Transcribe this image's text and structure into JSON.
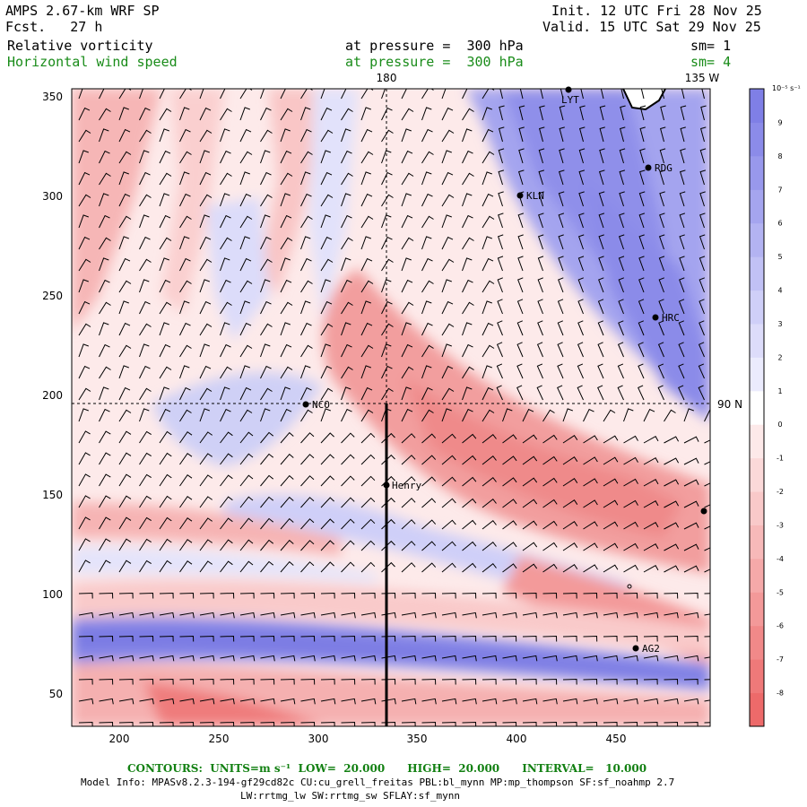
{
  "header": {
    "model_title": "AMPS 2.67-km WRF SP",
    "forecast": "Fcst.   27 h",
    "init": "Init. 12 UTC Fri 28 Nov 25",
    "valid": "Valid. 15 UTC Sat 29 Nov 25",
    "field1_name": "Relative vorticity",
    "field1_level": "at pressure =  300 hPa",
    "field1_smooth": "sm= 1",
    "field2_name": "Horizontal wind speed",
    "field2_level": "at pressure =  300 hPa",
    "field2_smooth": "sm= 4"
  },
  "map": {
    "x_ticks": [
      "200",
      "250",
      "300",
      "350",
      "400",
      "450"
    ],
    "y_ticks": [
      "350",
      "300",
      "250",
      "200",
      "150",
      "100",
      "50"
    ],
    "meridian_labels": [
      "180",
      "135 W"
    ],
    "parallel_label": "90 N",
    "stations": [
      {
        "id": "LYT",
        "label": "LYT"
      },
      {
        "id": "RDG",
        "label": "RDG"
      },
      {
        "id": "KLN",
        "label": "KLN"
      },
      {
        "id": "HRC",
        "label": "HRC"
      },
      {
        "id": "NCO",
        "label": "NCO"
      },
      {
        "id": "Henry",
        "label": "Henry"
      },
      {
        "id": "AG2",
        "label": "AG2"
      }
    ]
  },
  "colorbar": {
    "units": "10⁻⁵ s⁻¹",
    "labels": [
      "9",
      "8",
      "7",
      "6",
      "5",
      "4",
      "3",
      "2",
      "1",
      "0",
      "-1",
      "-2",
      "-3",
      "-4",
      "-5",
      "-6",
      "-7",
      "-8"
    ],
    "colors": [
      "#7f7fe6",
      "#8b8be9",
      "#9898ec",
      "#a5a5ef",
      "#b3b3f2",
      "#c1c1f5",
      "#cfcff8",
      "#dddcfa",
      "#ebebfd",
      "#ffffff",
      "#fde9e9",
      "#fbd9d9",
      "#f9c9c9",
      "#f7b9b9",
      "#f5a9a9",
      "#f39999",
      "#f18989",
      "#ef7979",
      "#ed6a6a"
    ]
  },
  "footer": {
    "contours": "CONTOURS:  UNITS=m s⁻¹  LOW=  20.000      HIGH=  20.000      INTERVAL=   10.000",
    "model_info": "Model Info: MPASv8.2.3-194-gf29cd82c CU:cu_grell_freitas PBL:bl_mynn MP:mp_thompson SF:sf_noahmp 2.7",
    "physics": "LW:rrtmg_lw SW:rrtmg_sw SFLAY:sf_mynn"
  }
}
